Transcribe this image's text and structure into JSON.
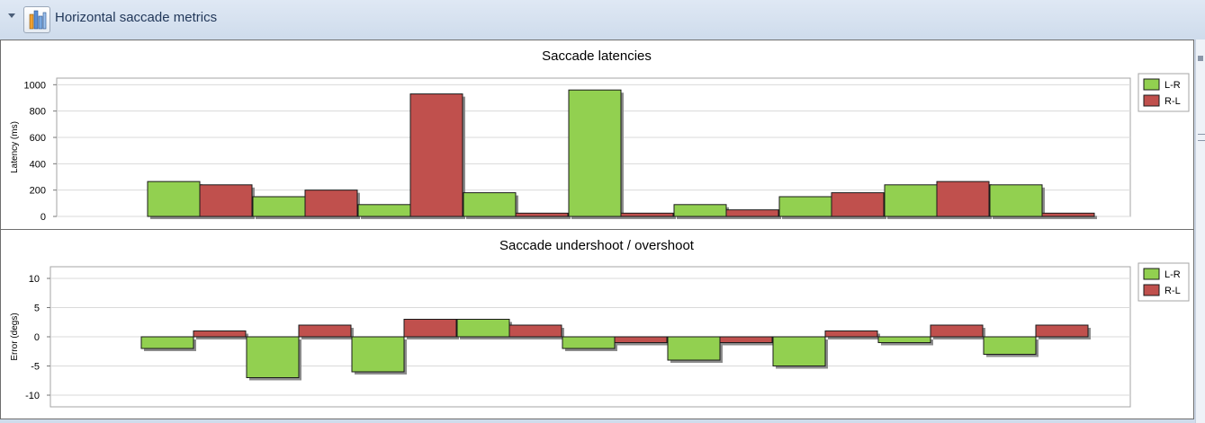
{
  "header": {
    "title": "Horizontal saccade metrics",
    "icon": "bar-chart-icon"
  },
  "colors": {
    "lr": "#92d050",
    "rl": "#c0504d",
    "grid": "#d9d9d9",
    "border": "#a6a6a6"
  },
  "chart_data": [
    {
      "type": "bar",
      "title": "Saccade latencies",
      "ylabel": "Latency (ms)",
      "ylim": [
        0,
        1050
      ],
      "yticks": [
        0,
        200,
        400,
        600,
        800,
        1000
      ],
      "grid": true,
      "legend": "top-right",
      "series": [
        {
          "name": "L-R",
          "values": [
            265,
            150,
            90,
            180,
            960,
            90,
            150,
            240,
            240
          ]
        },
        {
          "name": "R-L",
          "values": [
            240,
            200,
            930,
            25,
            25,
            50,
            180,
            265,
            25
          ]
        }
      ]
    },
    {
      "type": "bar",
      "title": "Saccade undershoot / overshoot",
      "ylabel": "Error (degs)",
      "ylim": [
        -12,
        12
      ],
      "yticks": [
        -10,
        -5,
        0,
        5,
        10
      ],
      "grid": true,
      "legend": "top-right",
      "series": [
        {
          "name": "L-R",
          "values": [
            -2,
            -7,
            -6,
            3,
            -2,
            -4,
            -5,
            -1,
            -3
          ]
        },
        {
          "name": "R-L",
          "values": [
            1,
            2,
            3,
            2,
            -1,
            -1,
            1,
            2,
            2
          ]
        }
      ]
    }
  ]
}
